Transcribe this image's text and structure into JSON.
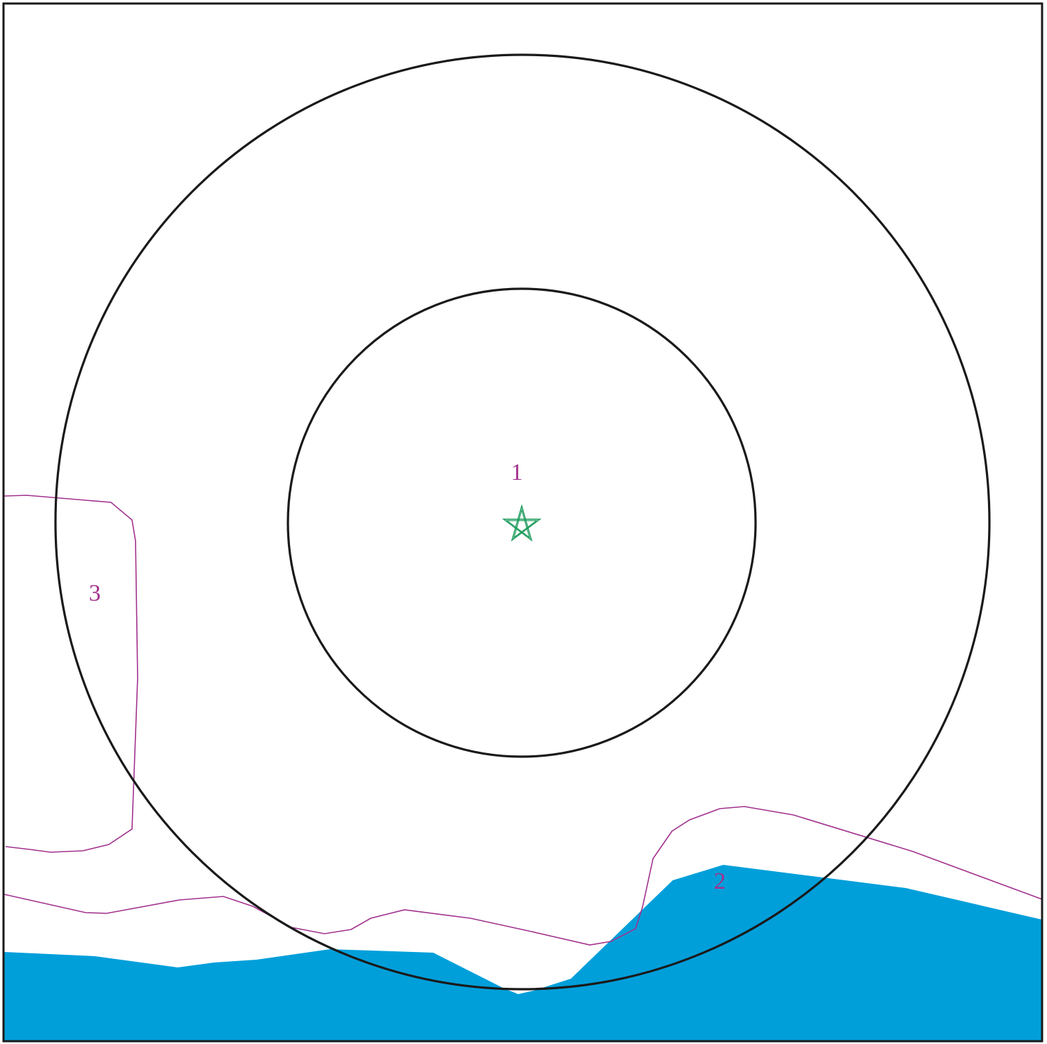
{
  "map": {
    "colors": {
      "background": "#ffffff",
      "frame": "#1a1a1a",
      "rings": "#1a1a1a",
      "water": "#019fda",
      "contours": "#a2328e",
      "labels": "#a2328e",
      "center_marker": "#1a9a5a"
    },
    "zone_labels": {
      "inner": "1",
      "water": "2",
      "left": "3"
    },
    "center_marker_icon": "star-icon"
  }
}
